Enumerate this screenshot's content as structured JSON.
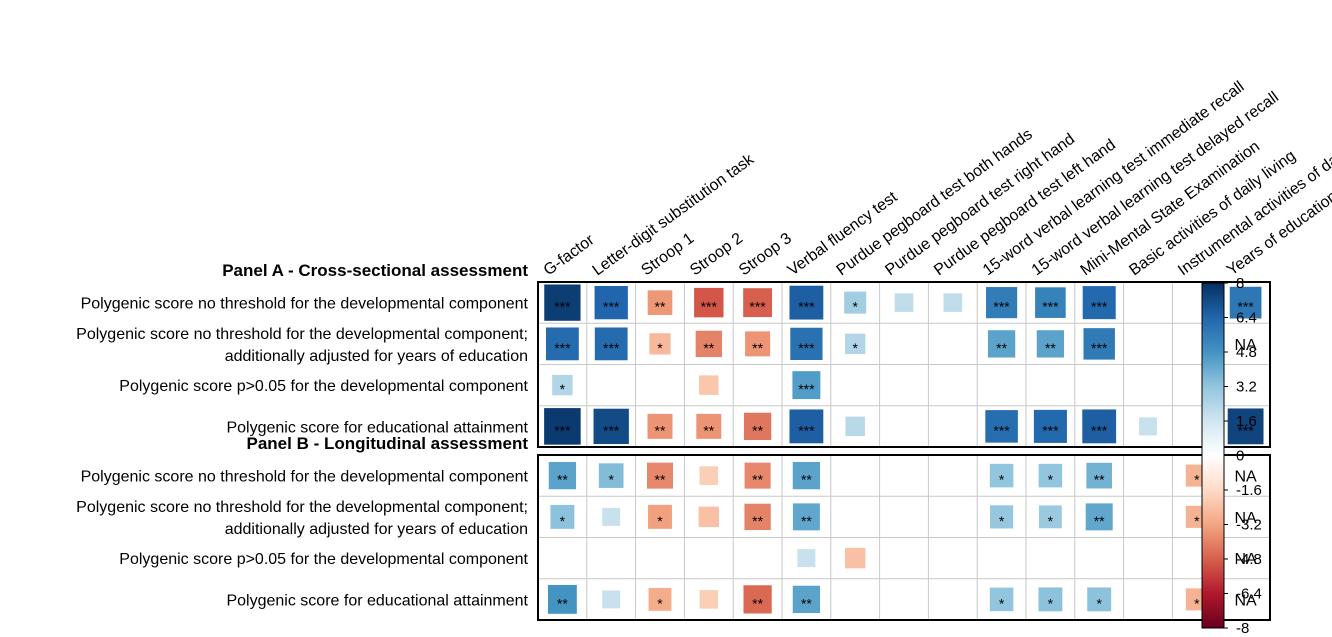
{
  "chart_data": {
    "type": "heatmap",
    "columns": [
      "G-factor",
      "Letter-digit substitution task",
      "Stroop 1",
      "Stroop 2",
      "Stroop 3",
      "Verbal fluency test",
      "Purdue pegboard test both hands",
      "Purdue pegboard test right hand",
      "Purdue pegboard test left hand",
      "15-word verbal learning test immediate recall",
      "15-word verbal learning test delayed recall",
      "Mini-Mental State Examination",
      "Basic activities of daily living",
      "Instrumental activities of daily living",
      "Years of education"
    ],
    "panels": [
      {
        "title": "Panel A - Cross-sectional assessment",
        "rows": [
          {
            "label_lines": [
              "Polygenic score no threshold for the developmental component"
            ],
            "values": [
              7.6,
              6.4,
              -3.5,
              -5.0,
              -4.8,
              6.6,
              2.8,
              2.0,
              2.0,
              5.6,
              5.4,
              6.3,
              0,
              0,
              5.8
            ],
            "stars": [
              "***",
              "***",
              "**",
              "***",
              "***",
              "***",
              "*",
              "",
              "",
              "***",
              "***",
              "***",
              "",
              "",
              "***"
            ],
            "na": [
              false,
              false,
              false,
              false,
              false,
              false,
              false,
              false,
              false,
              false,
              false,
              false,
              false,
              false,
              false
            ]
          },
          {
            "label_lines": [
              "Polygenic score no threshold for the developmental component;",
              "additionally adjusted for years of education"
            ],
            "values": [
              6.2,
              6.2,
              -2.6,
              -4.0,
              -3.6,
              6.0,
              2.4,
              0,
              0,
              4.3,
              4.3,
              5.7,
              0,
              0,
              0
            ],
            "stars": [
              "***",
              "***",
              "*",
              "**",
              "**",
              "***",
              "*",
              "",
              "",
              "**",
              "**",
              "***",
              "",
              "",
              ""
            ],
            "na": [
              false,
              false,
              false,
              false,
              false,
              false,
              false,
              false,
              false,
              false,
              false,
              false,
              false,
              false,
              true
            ]
          },
          {
            "label_lines": [
              "Polygenic score p>0.05 for the developmental component"
            ],
            "values": [
              2.4,
              0,
              0,
              -2.2,
              0,
              4.5,
              0,
              0,
              0,
              0,
              0,
              0,
              0,
              0,
              0
            ],
            "stars": [
              "*",
              "",
              "",
              "",
              "",
              "***",
              "",
              "",
              "",
              "",
              "",
              "",
              "",
              "",
              ""
            ],
            "na": [
              false,
              false,
              false,
              false,
              false,
              false,
              false,
              false,
              false,
              false,
              false,
              false,
              false,
              false,
              false
            ]
          },
          {
            "label_lines": [
              "Polygenic score for educational attainment"
            ],
            "values": [
              7.7,
              7.2,
              -3.6,
              -3.6,
              -4.3,
              6.6,
              2.2,
              0,
              0,
              6.1,
              6.3,
              6.6,
              1.8,
              0,
              7.4
            ],
            "stars": [
              "***",
              "***",
              "**",
              "**",
              "**",
              "***",
              "",
              "",
              "",
              "***",
              "***",
              "***",
              "",
              "",
              "***"
            ],
            "na": [
              false,
              false,
              false,
              false,
              false,
              false,
              false,
              false,
              false,
              false,
              false,
              false,
              false,
              false,
              false
            ]
          }
        ]
      },
      {
        "title": "Panel B - Longitudinal assessment",
        "rows": [
          {
            "label_lines": [
              "Polygenic score no threshold for the developmental component"
            ],
            "values": [
              4.3,
              3.5,
              -3.9,
              -2.0,
              -3.9,
              4.3,
              0,
              0,
              0,
              3.2,
              3.2,
              3.8,
              0,
              -2.8,
              0
            ],
            "stars": [
              "**",
              "*",
              "**",
              "",
              "**",
              "**",
              "",
              "",
              "",
              "*",
              "*",
              "**",
              "",
              "*",
              ""
            ],
            "na": [
              false,
              false,
              false,
              false,
              false,
              false,
              false,
              false,
              false,
              false,
              false,
              false,
              false,
              false,
              true
            ]
          },
          {
            "label_lines": [
              "Polygenic score no threshold for the developmental component;",
              "additionally adjusted for years of education"
            ],
            "values": [
              3.3,
              1.8,
              -3.3,
              -2.4,
              -4.0,
              4.2,
              0,
              0,
              0,
              3.1,
              3.0,
              4.2,
              0,
              -2.8,
              0
            ],
            "stars": [
              "*",
              "",
              "*",
              "",
              "**",
              "**",
              "",
              "",
              "",
              "*",
              "*",
              "**",
              "",
              "*",
              ""
            ],
            "na": [
              false,
              false,
              false,
              false,
              false,
              false,
              false,
              false,
              false,
              false,
              false,
              false,
              false,
              false,
              true
            ]
          },
          {
            "label_lines": [
              "Polygenic score p>0.05 for the developmental component"
            ],
            "values": [
              0,
              0,
              0,
              0,
              0,
              1.8,
              -2.4,
              0,
              0,
              0,
              0,
              0,
              0,
              0,
              0
            ],
            "stars": [
              "",
              "",
              "",
              "",
              "",
              "",
              "",
              "",
              "",
              "",
              "",
              "",
              "",
              "",
              ""
            ],
            "na": [
              false,
              false,
              false,
              false,
              false,
              false,
              false,
              false,
              false,
              false,
              false,
              false,
              false,
              false,
              true
            ]
          },
          {
            "label_lines": [
              "Polygenic score for educational attainment"
            ],
            "values": [
              4.8,
              1.8,
              -3.0,
              -2.0,
              -4.6,
              4.3,
              0,
              0,
              0,
              3.2,
              3.3,
              3.3,
              0,
              -2.8,
              0
            ],
            "stars": [
              "**",
              "",
              "*",
              "",
              "**",
              "**",
              "",
              "",
              "",
              "*",
              "*",
              "*",
              "",
              "*",
              ""
            ],
            "na": [
              false,
              false,
              false,
              false,
              false,
              false,
              false,
              false,
              false,
              false,
              false,
              false,
              false,
              false,
              true
            ]
          }
        ]
      }
    ],
    "na_text": "NA",
    "colorbar": {
      "min": -8,
      "max": 8,
      "ticks": [
        "8",
        "6.4",
        "4.8",
        "3.2",
        "1.6",
        "0",
        "-1.6",
        "-3.2",
        "-4.8",
        "-6.4",
        "-8"
      ],
      "colors": [
        "#053061",
        "#2166ac",
        "#4393c3",
        "#92c5de",
        "#d1e5f0",
        "#ffffff",
        "#fddbc7",
        "#f4a582",
        "#d6604d",
        "#b2182b",
        "#67001f"
      ]
    }
  }
}
